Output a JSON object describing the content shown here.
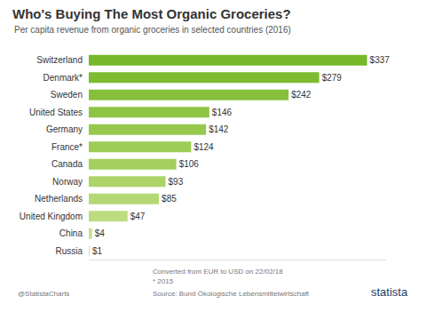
{
  "chart_data": {
    "type": "bar",
    "orientation": "horizontal",
    "title": "Who's Buying The Most Organic Groceries?",
    "subtitle": "Per capita revenue from organic groceries in selected countries (2016)",
    "categories": [
      "Switzerland",
      "Denmark*",
      "Sweden",
      "United States",
      "Germany",
      "France*",
      "Canada",
      "Norway",
      "Netherlands",
      "United Kingdom",
      "China",
      "Russia"
    ],
    "values": [
      337,
      279,
      242,
      146,
      142,
      124,
      106,
      93,
      85,
      47,
      4,
      1
    ],
    "value_labels": [
      "$337",
      "$279",
      "$242",
      "$146",
      "$142",
      "$124",
      "$106",
      "$93",
      "$85",
      "$47",
      "$4",
      "$1"
    ],
    "data_labels": true,
    "colors": [
      "#76b82a",
      "#7dbb31",
      "#86c03a",
      "#8ec444",
      "#95c84d",
      "#9ccc56",
      "#a4d060",
      "#acd46b",
      "#b4d876",
      "#bddc82",
      "#c6e18f",
      "#cfe59c"
    ],
    "xlim": [
      0,
      360
    ],
    "tick_labels": "y",
    "grid": false,
    "annotations": [
      "Converted from EUR to USD on 22/02/18",
      "* 2015",
      "Source: Bund Ökologische Lebensmittelwirtschaft",
      "@StatistaCharts",
      "statista"
    ]
  }
}
